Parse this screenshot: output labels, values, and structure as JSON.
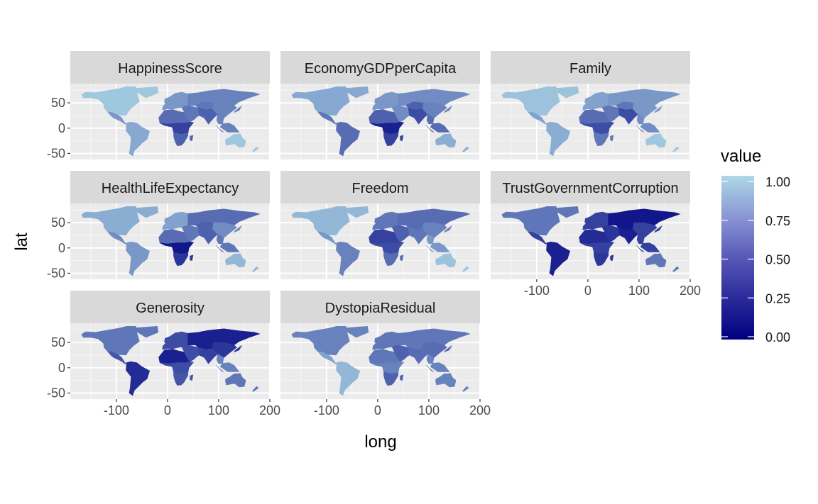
{
  "chart_data": {
    "type": "heatmap",
    "subtype": "faceted choropleth world map (ggplot2 facet_wrap)",
    "facets": [
      "HappinessScore",
      "EconomyGDPperCapita",
      "Family",
      "HealthLifeExpectancy",
      "Freedom",
      "TrustGovernmentCorruption",
      "Generosity",
      "DystopiaResidual"
    ],
    "xlabel": "long",
    "ylabel": "lat",
    "x_ticks": [
      "-100",
      "0",
      "100",
      "200"
    ],
    "x_tick_values": [
      -100,
      0,
      100,
      200
    ],
    "y_ticks": [
      "50",
      "0",
      "-50"
    ],
    "y_tick_values": [
      50,
      0,
      -50
    ],
    "xlim": [
      -190,
      200
    ],
    "ylim": [
      -62,
      88
    ],
    "grid": true,
    "legend": {
      "title": "value",
      "position": "right",
      "labels": [
        "1.00",
        "0.75",
        "0.50",
        "0.25",
        "0.00"
      ],
      "values": [
        1.0,
        0.75,
        0.5,
        0.25,
        0.0
      ],
      "low_color": "#000080",
      "high_color": "#add8e6"
    },
    "regions": [
      "north-america",
      "central-america",
      "south-america",
      "europe",
      "north-africa",
      "central-africa",
      "southern-africa",
      "middle-east",
      "russia",
      "central-asia",
      "south-asia",
      "east-asia",
      "southeast-asia",
      "australia"
    ],
    "values": {
      "HappinessScore": [
        0.92,
        0.7,
        0.78,
        0.7,
        0.5,
        0.3,
        0.45,
        0.55,
        0.6,
        0.55,
        0.45,
        0.6,
        0.6,
        0.92
      ],
      "EconomyGDPperCapita": [
        0.78,
        0.55,
        0.5,
        0.7,
        0.45,
        0.15,
        0.3,
        0.65,
        0.65,
        0.45,
        0.35,
        0.6,
        0.5,
        0.8
      ],
      "Family": [
        0.9,
        0.75,
        0.8,
        0.75,
        0.5,
        0.35,
        0.55,
        0.55,
        0.7,
        0.55,
        0.35,
        0.7,
        0.65,
        0.92
      ],
      "HealthLifeExpectancy": [
        0.8,
        0.65,
        0.7,
        0.75,
        0.5,
        0.1,
        0.25,
        0.55,
        0.5,
        0.45,
        0.45,
        0.65,
        0.55,
        0.85
      ],
      "Freedom": [
        0.85,
        0.7,
        0.6,
        0.55,
        0.3,
        0.35,
        0.5,
        0.45,
        0.5,
        0.5,
        0.55,
        0.6,
        0.7,
        0.9
      ],
      "TrustGovernmentCorruption": [
        0.55,
        0.3,
        0.15,
        0.3,
        0.2,
        0.3,
        0.25,
        0.25,
        0.1,
        0.1,
        0.15,
        0.3,
        0.3,
        0.55
      ],
      "Generosity": [
        0.55,
        0.4,
        0.2,
        0.35,
        0.15,
        0.35,
        0.4,
        0.35,
        0.15,
        0.15,
        0.3,
        0.25,
        0.6,
        0.55
      ],
      "DystopiaResidual": [
        0.6,
        0.75,
        0.85,
        0.55,
        0.55,
        0.6,
        0.45,
        0.45,
        0.55,
        0.55,
        0.5,
        0.5,
        0.6,
        0.6
      ]
    }
  }
}
